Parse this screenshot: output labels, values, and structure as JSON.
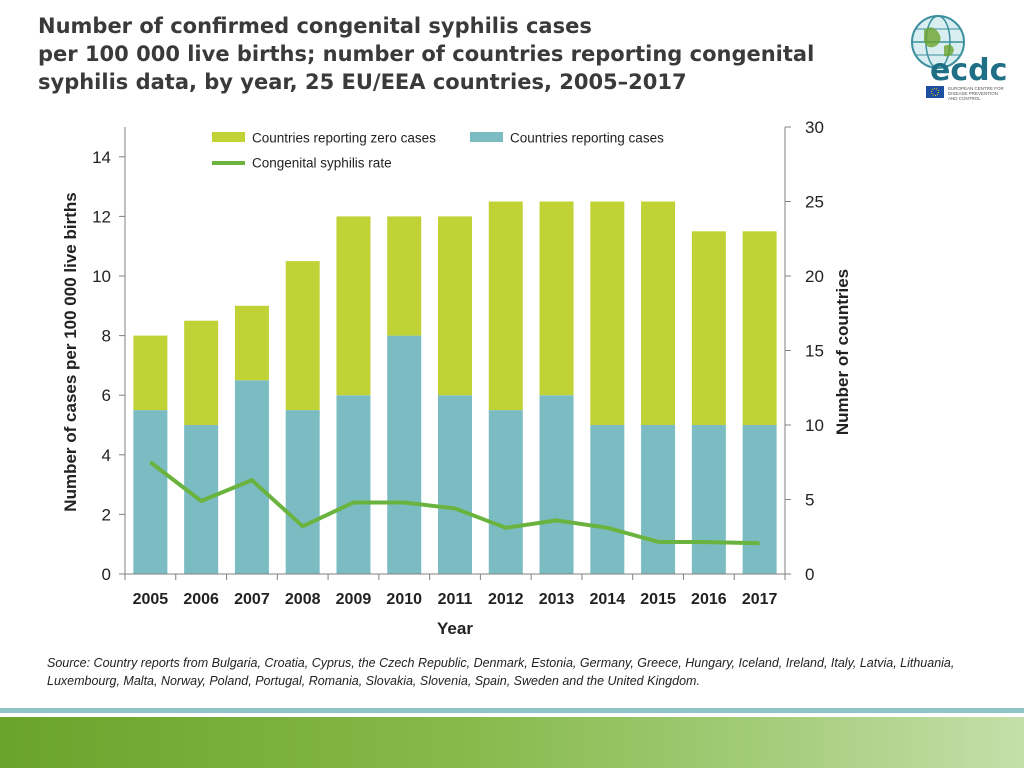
{
  "title": {
    "line1": "Number of confirmed congenital syphilis cases",
    "line2": "per 100 000 live births; number of countries reporting congenital",
    "line3": "syphilis data, by year, 25 EU/EEA countries, 2005–2017"
  },
  "logo": {
    "text": "ecdc",
    "subtext_lines": [
      "EUROPEAN CENTRE FOR",
      "DISEASE PREVENTION",
      "AND CONTROL"
    ]
  },
  "colors": {
    "zero": "#c0d236",
    "cases": "#7bbcc3",
    "rate": "#6ab33e",
    "axis": "#808080",
    "text": "#222222"
  },
  "chart_data": {
    "type": "bar",
    "stacked": true,
    "categories": [
      "2005",
      "2006",
      "2007",
      "2008",
      "2009",
      "2010",
      "2011",
      "2012",
      "2013",
      "2014",
      "2015",
      "2016",
      "2017"
    ],
    "series": [
      {
        "name": "Countries reporting cases",
        "axis": "right",
        "values": [
          11,
          10,
          13,
          11,
          12,
          16,
          12,
          11,
          12,
          10,
          10,
          10,
          10
        ]
      },
      {
        "name": "Countries reporting zero cases",
        "axis": "right",
        "values": [
          5,
          7,
          5,
          10,
          12,
          8,
          12,
          14,
          13,
          15,
          15,
          13,
          13
        ]
      },
      {
        "name": "Congenital syphilis rate",
        "type": "line",
        "axis": "left",
        "values": [
          3.75,
          2.45,
          3.15,
          1.6,
          2.4,
          2.4,
          2.2,
          1.55,
          1.8,
          1.55,
          1.08,
          1.07,
          1.03
        ]
      }
    ],
    "ylabel": "Number of cases per 100 000 live births",
    "y2label": "Number of countries",
    "xlabel": "Year",
    "ylim": [
      0,
      15
    ],
    "y2lim": [
      0,
      30
    ],
    "yticks": [
      "0",
      "2",
      "4",
      "6",
      "8",
      "10",
      "12",
      "14"
    ],
    "y2ticks": [
      "0",
      "5",
      "10",
      "15",
      "20",
      "25",
      "30"
    ],
    "legend": [
      "Countries reporting zero cases",
      "Countries reporting cases",
      "Congenital syphilis rate"
    ],
    "legend_position": "top"
  },
  "source": "Source: Country reports from Bulgaria, Croatia, Cyprus, the Czech Republic, Denmark, Estonia, Germany, Greece, Hungary, Iceland, Ireland, Italy, Latvia, Lithuania, Luxembourg, Malta, Norway, Poland, Portugal, Romania, Slovakia, Slovenia, Spain, Sweden and the United Kingdom."
}
